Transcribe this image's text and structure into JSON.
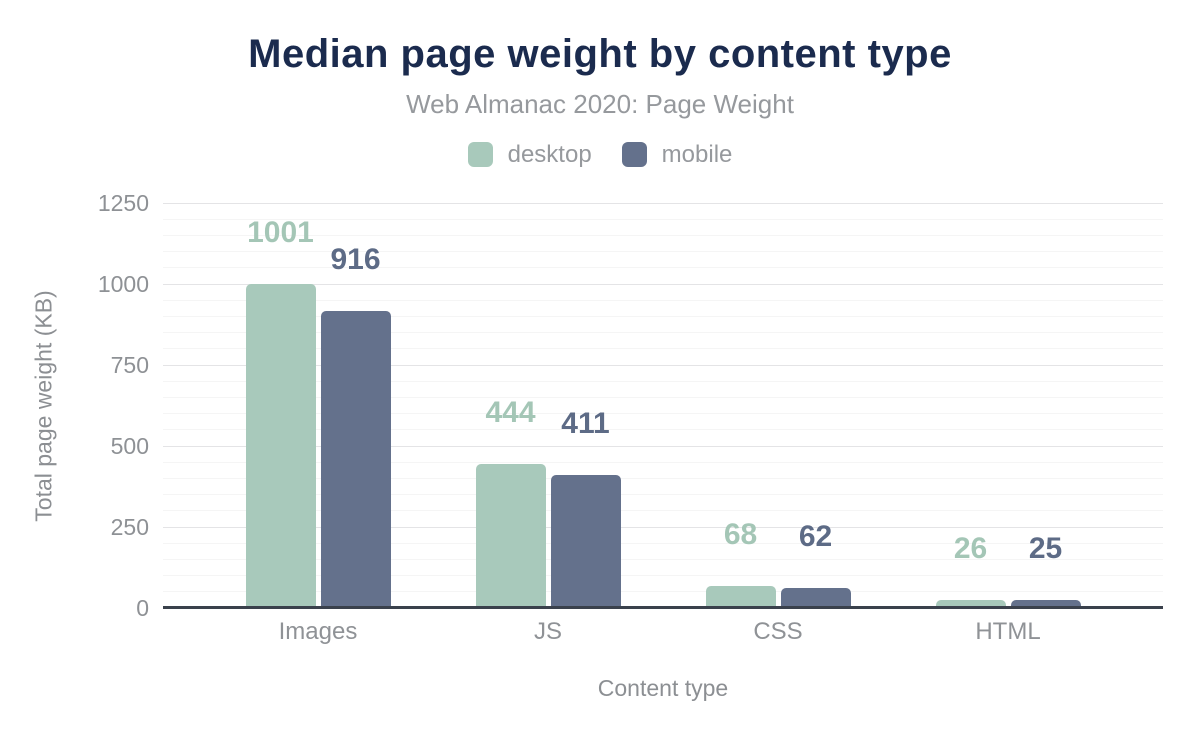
{
  "chart_data": {
    "type": "bar",
    "title": "Median page weight by content type",
    "subtitle": "Web Almanac 2020: Page Weight",
    "categories": [
      "Images",
      "JS",
      "CSS",
      "HTML"
    ],
    "series": [
      {
        "name": "desktop",
        "color": "#a8c9bb",
        "label_color": "#a4c6b6",
        "values": [
          1001,
          444,
          68,
          26
        ]
      },
      {
        "name": "mobile",
        "color": "#64718c",
        "label_color": "#5d6b86",
        "values": [
          916,
          411,
          62,
          25
        ]
      }
    ],
    "xlabel": "Content type",
    "ylabel": "Total page weight (KB)",
    "ylim": [
      0,
      1250
    ],
    "ytick_step": 250,
    "minor_step": 50,
    "yticks": [
      "0",
      "250",
      "500",
      "750",
      "1000",
      "1250"
    ],
    "grid": true,
    "legend_position": "top"
  },
  "colors": {
    "background": "#ffffff",
    "title_text": "#1b2b4e",
    "muted_text": "#96999d",
    "tick_text": "#8e9195",
    "axis_line": "#3a414c",
    "grid_major": "#e4e4e6",
    "grid_minor": "#f5f5f5"
  }
}
